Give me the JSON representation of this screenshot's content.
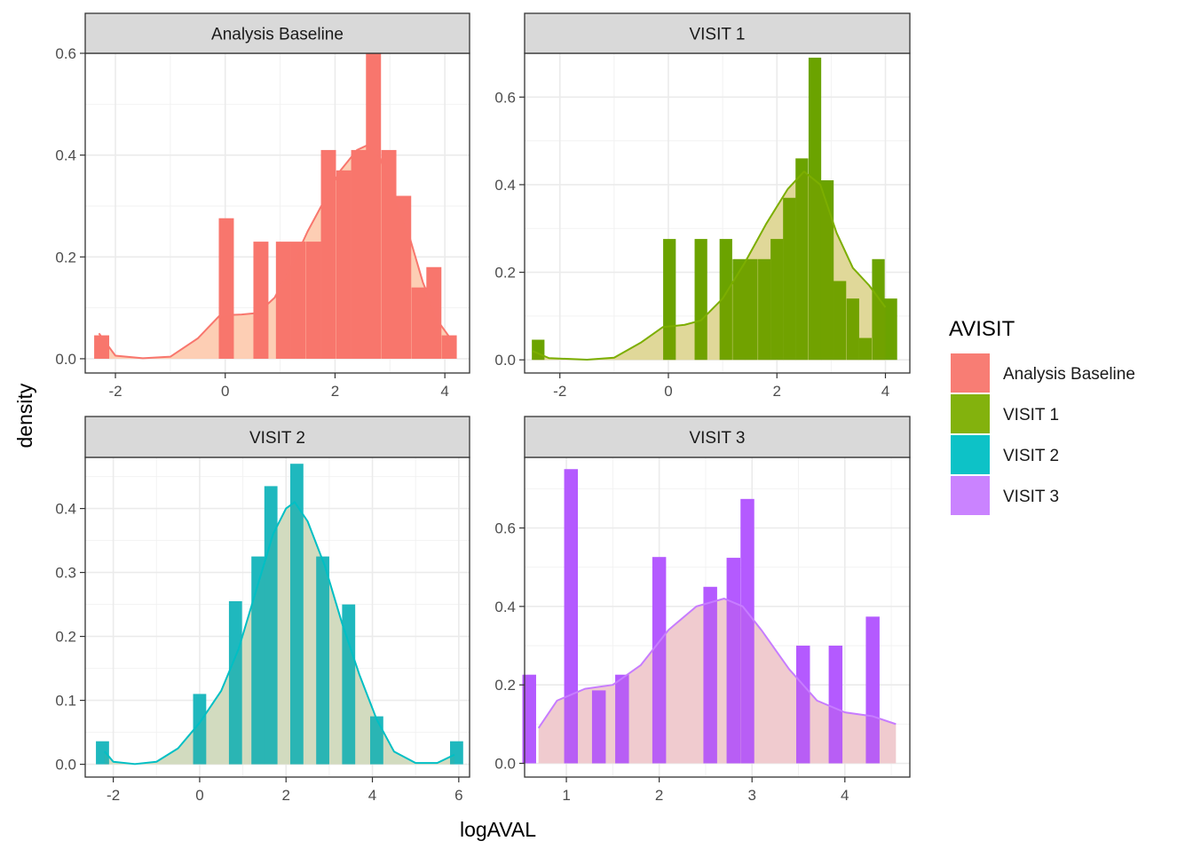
{
  "chart_data": {
    "type": "histogram-density-facets",
    "xlabel": "logAVAL",
    "ylabel": "density",
    "legend": {
      "title": "AVISIT",
      "placement": "right",
      "items": [
        {
          "label": "Analysis Baseline",
          "color": "#F8766D"
        },
        {
          "label": "VISIT 1",
          "color": "#7CAE00"
        },
        {
          "label": "VISIT 2",
          "color": "#00BFC4"
        },
        {
          "label": "VISIT 3",
          "color": "#C77CFF"
        }
      ]
    },
    "density_fill": "#FFEBCD",
    "grid": true,
    "panels": [
      {
        "strip": "Analysis Baseline",
        "line_color": "#F8766D",
        "hist_color": "#F8766D",
        "fill_color": "#F8766D",
        "xlim": [
          -2.55,
          4.45
        ],
        "ylim": [
          -0.028,
          0.6
        ],
        "xticks": [
          -2,
          0,
          2,
          4
        ],
        "yticks": [
          0.0,
          0.2,
          0.4,
          0.6
        ],
        "ytick_labels": [
          "0.0",
          "0.2",
          "0.4",
          "0.6"
        ],
        "bin_width": 0.274,
        "bins": [
          {
            "x": -2.25,
            "y": 0.046
          },
          {
            "x": 0.02,
            "y": 0.276
          },
          {
            "x": 0.65,
            "y": 0.23
          },
          {
            "x": 1.06,
            "y": 0.23
          },
          {
            "x": 1.33,
            "y": 0.23
          },
          {
            "x": 1.61,
            "y": 0.23
          },
          {
            "x": 1.88,
            "y": 0.41
          },
          {
            "x": 2.16,
            "y": 0.37
          },
          {
            "x": 2.43,
            "y": 0.41
          },
          {
            "x": 2.7,
            "y": 0.6
          },
          {
            "x": 2.98,
            "y": 0.41
          },
          {
            "x": 3.25,
            "y": 0.32
          },
          {
            "x": 3.53,
            "y": 0.14
          },
          {
            "x": 3.8,
            "y": 0.18
          },
          {
            "x": 4.08,
            "y": 0.046
          }
        ],
        "density": [
          [
            -2.3,
            0.05
          ],
          [
            -2.0,
            0.006
          ],
          [
            -1.5,
            0.001
          ],
          [
            -1.0,
            0.004
          ],
          [
            -0.5,
            0.04
          ],
          [
            -0.1,
            0.085
          ],
          [
            0.3,
            0.087
          ],
          [
            0.6,
            0.09
          ],
          [
            0.9,
            0.12
          ],
          [
            1.2,
            0.18
          ],
          [
            1.5,
            0.25
          ],
          [
            1.8,
            0.31
          ],
          [
            2.1,
            0.37
          ],
          [
            2.4,
            0.41
          ],
          [
            2.6,
            0.42
          ],
          [
            2.8,
            0.4
          ],
          [
            3.0,
            0.34
          ],
          [
            3.3,
            0.26
          ],
          [
            3.6,
            0.15
          ],
          [
            3.9,
            0.07
          ],
          [
            4.1,
            0.04
          ]
        ]
      },
      {
        "strip": "VISIT 1",
        "line_color": "#7CAE00",
        "hist_color": "#6BA300",
        "fill_color": "#85A000",
        "xlim": [
          -2.65,
          4.45
        ],
        "ylim": [
          -0.03,
          0.7
        ],
        "xticks": [
          -2,
          0,
          2,
          4
        ],
        "yticks": [
          0.0,
          0.2,
          0.4,
          0.6
        ],
        "ytick_labels": [
          "0.0",
          "0.2",
          "0.4",
          "0.6"
        ],
        "bin_width": 0.233,
        "bins": [
          {
            "x": -2.4,
            "y": 0.046
          },
          {
            "x": 0.02,
            "y": 0.276
          },
          {
            "x": 0.6,
            "y": 0.276
          },
          {
            "x": 1.06,
            "y": 0.276
          },
          {
            "x": 1.3,
            "y": 0.23
          },
          {
            "x": 1.53,
            "y": 0.23
          },
          {
            "x": 1.77,
            "y": 0.23
          },
          {
            "x": 2.0,
            "y": 0.276
          },
          {
            "x": 2.23,
            "y": 0.37
          },
          {
            "x": 2.46,
            "y": 0.46
          },
          {
            "x": 2.7,
            "y": 0.69
          },
          {
            "x": 2.93,
            "y": 0.41
          },
          {
            "x": 3.16,
            "y": 0.18
          },
          {
            "x": 3.4,
            "y": 0.14
          },
          {
            "x": 3.63,
            "y": 0.05
          },
          {
            "x": 3.87,
            "y": 0.23
          },
          {
            "x": 4.1,
            "y": 0.14
          }
        ],
        "density": [
          [
            -2.5,
            0.02
          ],
          [
            -2.2,
            0.004
          ],
          [
            -1.5,
            0.0005
          ],
          [
            -1.0,
            0.005
          ],
          [
            -0.5,
            0.04
          ],
          [
            -0.1,
            0.075
          ],
          [
            0.3,
            0.08
          ],
          [
            0.6,
            0.09
          ],
          [
            1.0,
            0.14
          ],
          [
            1.4,
            0.22
          ],
          [
            1.8,
            0.31
          ],
          [
            2.2,
            0.39
          ],
          [
            2.5,
            0.43
          ],
          [
            2.8,
            0.4
          ],
          [
            3.1,
            0.29
          ],
          [
            3.4,
            0.21
          ],
          [
            3.7,
            0.17
          ],
          [
            4.0,
            0.12
          ]
        ]
      },
      {
        "strip": "VISIT 2",
        "line_color": "#00BFC4",
        "hist_color": "#1FB8BE",
        "fill_color": "#4BAD99",
        "xlim": [
          -2.65,
          6.25
        ],
        "ylim": [
          -0.02,
          0.48
        ],
        "xticks": [
          -2,
          0,
          2,
          4,
          6
        ],
        "yticks": [
          0.0,
          0.1,
          0.2,
          0.3,
          0.4
        ],
        "ytick_labels": [
          "0.0",
          "0.1",
          "0.2",
          "0.3",
          "0.4"
        ],
        "bin_width": 0.304,
        "bins": [
          {
            "x": -2.25,
            "y": 0.036
          },
          {
            "x": 0.0,
            "y": 0.11
          },
          {
            "x": 0.83,
            "y": 0.255
          },
          {
            "x": 1.35,
            "y": 0.325
          },
          {
            "x": 1.65,
            "y": 0.435
          },
          {
            "x": 2.25,
            "y": 0.47
          },
          {
            "x": 2.85,
            "y": 0.325
          },
          {
            "x": 3.45,
            "y": 0.25
          },
          {
            "x": 4.1,
            "y": 0.075
          },
          {
            "x": 5.95,
            "y": 0.036
          }
        ],
        "density": [
          [
            -2.2,
            0.02
          ],
          [
            -2.0,
            0.004
          ],
          [
            -1.5,
            0.0004
          ],
          [
            -1.0,
            0.004
          ],
          [
            -0.5,
            0.025
          ],
          [
            0.0,
            0.065
          ],
          [
            0.5,
            0.115
          ],
          [
            0.9,
            0.18
          ],
          [
            1.3,
            0.27
          ],
          [
            1.7,
            0.36
          ],
          [
            2.0,
            0.4
          ],
          [
            2.2,
            0.41
          ],
          [
            2.5,
            0.38
          ],
          [
            2.9,
            0.31
          ],
          [
            3.3,
            0.22
          ],
          [
            3.7,
            0.14
          ],
          [
            4.1,
            0.07
          ],
          [
            4.5,
            0.02
          ],
          [
            5.0,
            0.002
          ],
          [
            5.5,
            0.002
          ],
          [
            5.9,
            0.015
          ]
        ]
      },
      {
        "strip": "VISIT 3",
        "line_color": "#C77CFF",
        "hist_color": "#B45AFF",
        "fill_color": "#C56AD6",
        "xlim": [
          0.55,
          4.7
        ],
        "ylim": [
          -0.035,
          0.78
        ],
        "xticks": [
          1,
          2,
          3,
          4
        ],
        "yticks": [
          0.0,
          0.2,
          0.4,
          0.6
        ],
        "ytick_labels": [
          "0.0",
          "0.2",
          "0.4",
          "0.6"
        ],
        "bin_width": 0.148,
        "bins": [
          {
            "x": 0.6,
            "y": 0.226
          },
          {
            "x": 1.05,
            "y": 0.75
          },
          {
            "x": 1.35,
            "y": 0.186
          },
          {
            "x": 1.6,
            "y": 0.226
          },
          {
            "x": 2.0,
            "y": 0.526
          },
          {
            "x": 2.55,
            "y": 0.45
          },
          {
            "x": 2.8,
            "y": 0.524
          },
          {
            "x": 2.95,
            "y": 0.674
          },
          {
            "x": 3.55,
            "y": 0.3
          },
          {
            "x": 3.9,
            "y": 0.3
          },
          {
            "x": 4.3,
            "y": 0.374
          }
        ],
        "density": [
          [
            0.7,
            0.09
          ],
          [
            0.9,
            0.16
          ],
          [
            1.2,
            0.19
          ],
          [
            1.5,
            0.2
          ],
          [
            1.8,
            0.25
          ],
          [
            2.1,
            0.34
          ],
          [
            2.4,
            0.4
          ],
          [
            2.7,
            0.42
          ],
          [
            2.9,
            0.4
          ],
          [
            3.1,
            0.34
          ],
          [
            3.4,
            0.24
          ],
          [
            3.7,
            0.16
          ],
          [
            4.0,
            0.13
          ],
          [
            4.3,
            0.12
          ],
          [
            4.55,
            0.1
          ]
        ]
      }
    ]
  }
}
